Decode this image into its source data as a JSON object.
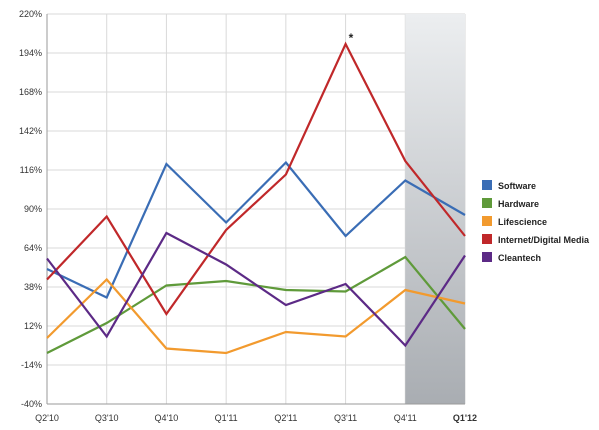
{
  "chart_data": {
    "type": "line",
    "categories": [
      "Q2'10",
      "Q3'10",
      "Q4'10",
      "Q1'11",
      "Q2'11",
      "Q3'11",
      "Q4'11",
      "Q1'12"
    ],
    "ylim": [
      -40,
      220
    ],
    "yticks": [
      "220%",
      "194%",
      "168%",
      "142%",
      "116%",
      "90%",
      "64%",
      "38%",
      "12%",
      "-14%",
      "-40%"
    ],
    "ytick_values": [
      220,
      194,
      168,
      142,
      116,
      90,
      64,
      38,
      12,
      -14,
      -40
    ],
    "grid": true,
    "legend_position": "right",
    "highlight_category": "Q1'12",
    "annotation": {
      "text": "*",
      "category": "Q3'11",
      "series": "Internet/Digital Media"
    },
    "series": [
      {
        "name": "Software",
        "color": "#3a6db5",
        "values": [
          50,
          31,
          120,
          81,
          121,
          72,
          109,
          86
        ]
      },
      {
        "name": "Hardware",
        "color": "#5f9a3a",
        "values": [
          -6,
          14,
          39,
          42,
          36,
          35,
          58,
          10
        ]
      },
      {
        "name": "Lifescience",
        "color": "#f29a2e",
        "values": [
          4,
          43,
          -3,
          -6,
          8,
          5,
          36,
          27
        ]
      },
      {
        "name": "Internet/Digital Media",
        "color": "#c0282a",
        "values": [
          43,
          85,
          20,
          76,
          113,
          200,
          122,
          72
        ]
      },
      {
        "name": "Cleantech",
        "color": "#5c2a86",
        "values": [
          57,
          5,
          74,
          53,
          26,
          40,
          -1,
          59
        ]
      }
    ]
  }
}
